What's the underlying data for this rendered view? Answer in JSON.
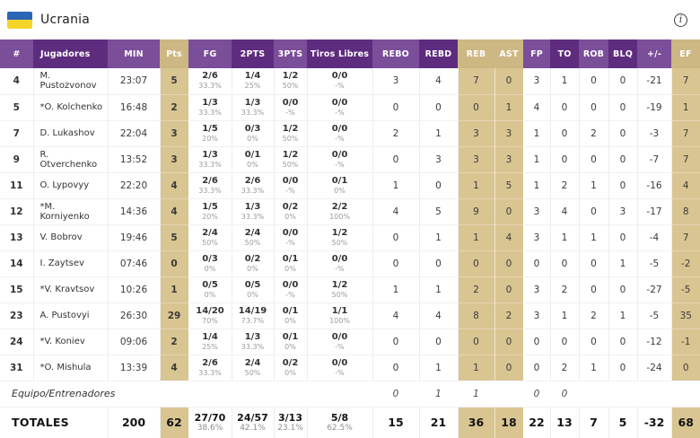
{
  "title": {
    "team": "Ucrania"
  },
  "icons": {
    "info_glyph": "i",
    "flag": "ukraine-flag"
  },
  "colors": {
    "purple_dark": "#5e2c7e",
    "purple_light": "#7a4e99",
    "tan_header": "#cdb783",
    "tan_body": "#d9c591",
    "flag_blue": "#2a66b5",
    "flag_yellow": "#f5d428"
  },
  "table": {
    "columns": [
      {
        "key": "num",
        "label": "#",
        "shade": "light"
      },
      {
        "key": "name",
        "label": "Jugadores",
        "shade": "dark"
      },
      {
        "key": "min",
        "label": "MIN",
        "shade": "light"
      },
      {
        "key": "pts",
        "label": "Pts",
        "shade": "tan"
      },
      {
        "key": "fg",
        "label": "FG",
        "shade": "light",
        "shoot": true
      },
      {
        "key": "p2",
        "label": "2PTS",
        "shade": "dark",
        "shoot": true
      },
      {
        "key": "p3",
        "label": "3PTS",
        "shade": "light",
        "shoot": true
      },
      {
        "key": "tl",
        "label": "Tiros Libres",
        "shade": "dark",
        "shoot": true
      },
      {
        "key": "rebo",
        "label": "REBO",
        "shade": "light"
      },
      {
        "key": "rebd",
        "label": "REBD",
        "shade": "dark"
      },
      {
        "key": "reb",
        "label": "REB",
        "shade": "tan"
      },
      {
        "key": "ast",
        "label": "AST",
        "shade": "tan"
      },
      {
        "key": "fp",
        "label": "FP",
        "shade": "light"
      },
      {
        "key": "to",
        "label": "TO",
        "shade": "dark"
      },
      {
        "key": "rob",
        "label": "ROB",
        "shade": "light"
      },
      {
        "key": "blq",
        "label": "BLQ",
        "shade": "dark"
      },
      {
        "key": "pm",
        "label": "+/-",
        "shade": "light"
      },
      {
        "key": "ef",
        "label": "EF",
        "shade": "tan"
      }
    ],
    "players": [
      {
        "num": "4",
        "name": "M. Pustozvonov",
        "min": "23:07",
        "pts": "5",
        "fg": [
          "2/6",
          "33.3%"
        ],
        "p2": [
          "1/4",
          "25%"
        ],
        "p3": [
          "1/2",
          "50%"
        ],
        "tl": [
          "0/0",
          "-%"
        ],
        "rebo": "3",
        "rebd": "4",
        "reb": "7",
        "ast": "0",
        "fp": "3",
        "to": "1",
        "rob": "0",
        "blq": "0",
        "pm": "-21",
        "ef": "7"
      },
      {
        "num": "5",
        "name": "*O. Kolchenko",
        "min": "16:48",
        "pts": "2",
        "fg": [
          "1/3",
          "33.3%"
        ],
        "p2": [
          "1/3",
          "33.3%"
        ],
        "p3": [
          "0/0",
          "-%"
        ],
        "tl": [
          "0/0",
          "-%"
        ],
        "rebo": "0",
        "rebd": "0",
        "reb": "0",
        "ast": "1",
        "fp": "4",
        "to": "0",
        "rob": "0",
        "blq": "0",
        "pm": "-19",
        "ef": "1"
      },
      {
        "num": "7",
        "name": "D. Lukashov",
        "min": "22:04",
        "pts": "3",
        "fg": [
          "1/5",
          "20%"
        ],
        "p2": [
          "0/3",
          "0%"
        ],
        "p3": [
          "1/2",
          "50%"
        ],
        "tl": [
          "0/0",
          "-%"
        ],
        "rebo": "2",
        "rebd": "1",
        "reb": "3",
        "ast": "3",
        "fp": "1",
        "to": "0",
        "rob": "2",
        "blq": "0",
        "pm": "-3",
        "ef": "7"
      },
      {
        "num": "9",
        "name": "R. Otverchenko",
        "min": "13:52",
        "pts": "3",
        "fg": [
          "1/3",
          "33.3%"
        ],
        "p2": [
          "0/1",
          "0%"
        ],
        "p3": [
          "1/2",
          "50%"
        ],
        "tl": [
          "0/0",
          "-%"
        ],
        "rebo": "0",
        "rebd": "3",
        "reb": "3",
        "ast": "3",
        "fp": "1",
        "to": "0",
        "rob": "0",
        "blq": "0",
        "pm": "-7",
        "ef": "7"
      },
      {
        "num": "11",
        "name": "O. Lypovyy",
        "min": "22:20",
        "pts": "4",
        "fg": [
          "2/6",
          "33.3%"
        ],
        "p2": [
          "2/6",
          "33.3%"
        ],
        "p3": [
          "0/0",
          "-%"
        ],
        "tl": [
          "0/1",
          "0%"
        ],
        "rebo": "1",
        "rebd": "0",
        "reb": "1",
        "ast": "5",
        "fp": "1",
        "to": "2",
        "rob": "1",
        "blq": "0",
        "pm": "-16",
        "ef": "4"
      },
      {
        "num": "12",
        "name": "*M. Korniyenko",
        "min": "14:36",
        "pts": "4",
        "fg": [
          "1/5",
          "20%"
        ],
        "p2": [
          "1/3",
          "33.3%"
        ],
        "p3": [
          "0/2",
          "0%"
        ],
        "tl": [
          "2/2",
          "100%"
        ],
        "rebo": "4",
        "rebd": "5",
        "reb": "9",
        "ast": "0",
        "fp": "3",
        "to": "4",
        "rob": "0",
        "blq": "3",
        "pm": "-17",
        "ef": "8"
      },
      {
        "num": "13",
        "name": "V. Bobrov",
        "min": "19:46",
        "pts": "5",
        "fg": [
          "2/4",
          "50%"
        ],
        "p2": [
          "2/4",
          "50%"
        ],
        "p3": [
          "0/0",
          "-%"
        ],
        "tl": [
          "1/2",
          "50%"
        ],
        "rebo": "0",
        "rebd": "1",
        "reb": "1",
        "ast": "4",
        "fp": "3",
        "to": "1",
        "rob": "1",
        "blq": "0",
        "pm": "-4",
        "ef": "7"
      },
      {
        "num": "14",
        "name": "I. Zaytsev",
        "min": "07:46",
        "pts": "0",
        "fg": [
          "0/3",
          "0%"
        ],
        "p2": [
          "0/2",
          "0%"
        ],
        "p3": [
          "0/1",
          "0%"
        ],
        "tl": [
          "0/0",
          "-%"
        ],
        "rebo": "0",
        "rebd": "0",
        "reb": "0",
        "ast": "0",
        "fp": "0",
        "to": "0",
        "rob": "0",
        "blq": "1",
        "pm": "-5",
        "ef": "-2"
      },
      {
        "num": "15",
        "name": "*V. Kravtsov",
        "min": "10:26",
        "pts": "1",
        "fg": [
          "0/5",
          "0%"
        ],
        "p2": [
          "0/5",
          "0%"
        ],
        "p3": [
          "0/0",
          "-%"
        ],
        "tl": [
          "1/2",
          "50%"
        ],
        "rebo": "1",
        "rebd": "1",
        "reb": "2",
        "ast": "0",
        "fp": "3",
        "to": "2",
        "rob": "0",
        "blq": "0",
        "pm": "-27",
        "ef": "-5"
      },
      {
        "num": "23",
        "name": "A. Pustovyi",
        "min": "26:30",
        "pts": "29",
        "fg": [
          "14/20",
          "70%"
        ],
        "p2": [
          "14/19",
          "73.7%"
        ],
        "p3": [
          "0/1",
          "0%"
        ],
        "tl": [
          "1/1",
          "100%"
        ],
        "rebo": "4",
        "rebd": "4",
        "reb": "8",
        "ast": "2",
        "fp": "3",
        "to": "1",
        "rob": "2",
        "blq": "1",
        "pm": "-5",
        "ef": "35"
      },
      {
        "num": "24",
        "name": "*V. Koniev",
        "min": "09:06",
        "pts": "2",
        "fg": [
          "1/4",
          "25%"
        ],
        "p2": [
          "1/3",
          "33.3%"
        ],
        "p3": [
          "0/1",
          "0%"
        ],
        "tl": [
          "0/0",
          "-%"
        ],
        "rebo": "0",
        "rebd": "0",
        "reb": "0",
        "ast": "0",
        "fp": "0",
        "to": "0",
        "rob": "0",
        "blq": "0",
        "pm": "-12",
        "ef": "-1"
      },
      {
        "num": "31",
        "name": "*O. Mishula",
        "min": "13:39",
        "pts": "4",
        "fg": [
          "2/6",
          "33.3%"
        ],
        "p2": [
          "2/4",
          "50%"
        ],
        "p3": [
          "0/2",
          "0%"
        ],
        "tl": [
          "0/0",
          "-%"
        ],
        "rebo": "0",
        "rebd": "1",
        "reb": "1",
        "ast": "0",
        "fp": "0",
        "to": "2",
        "rob": "1",
        "blq": "0",
        "pm": "-24",
        "ef": "0"
      }
    ],
    "team_row": {
      "label": "Equipo/Entrenadores",
      "rebo": "0",
      "rebd": "1",
      "reb": "1",
      "ast": "",
      "fp": "0",
      "to": "0",
      "rob": "",
      "blq": "",
      "pm": "",
      "ef": ""
    },
    "totals": {
      "label": "TOTALES",
      "min": "200",
      "pts": "62",
      "fg": [
        "27/70",
        "38.6%"
      ],
      "p2": [
        "24/57",
        "42.1%"
      ],
      "p3": [
        "3/13",
        "23.1%"
      ],
      "tl": [
        "5/8",
        "62.5%"
      ],
      "rebo": "15",
      "rebd": "21",
      "reb": "36",
      "ast": "18",
      "fp": "22",
      "to": "13",
      "rob": "7",
      "blq": "5",
      "pm": "-32",
      "ef": "68"
    }
  }
}
